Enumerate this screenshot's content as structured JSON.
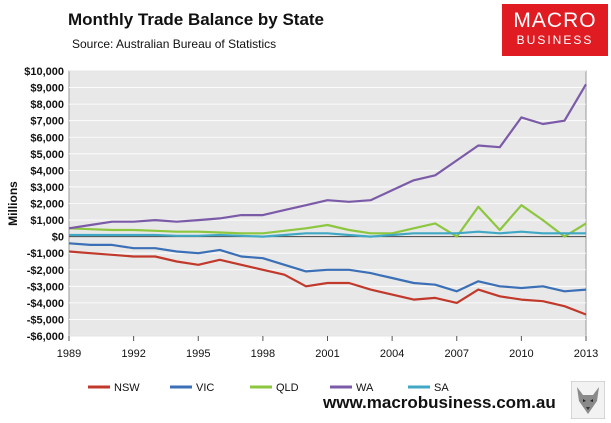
{
  "header": {
    "title": "Monthly Trade Balance by State",
    "subtitle": "Source: Australian Bureau of Statistics"
  },
  "logo": {
    "line1": "MACRO",
    "line2": "BUSINESS"
  },
  "footer": {
    "website": "www.macrobusiness.com.au"
  },
  "chart_data": {
    "type": "line",
    "ylabel": "Millions",
    "xlim": [
      1989,
      2013
    ],
    "ylim": [
      -6000,
      10000
    ],
    "yticks": [
      {
        "v": 10000,
        "label": "$10,000"
      },
      {
        "v": 9000,
        "label": "$9,000"
      },
      {
        "v": 8000,
        "label": "$8,000"
      },
      {
        "v": 7000,
        "label": "$7,000"
      },
      {
        "v": 6000,
        "label": "$6,000"
      },
      {
        "v": 5000,
        "label": "$5,000"
      },
      {
        "v": 4000,
        "label": "$4,000"
      },
      {
        "v": 3000,
        "label": "$3,000"
      },
      {
        "v": 2000,
        "label": "$2,000"
      },
      {
        "v": 1000,
        "label": "$1,000"
      },
      {
        "v": 0,
        "label": "$0"
      },
      {
        "v": -1000,
        "label": "-$1,000"
      },
      {
        "v": -2000,
        "label": "-$2,000"
      },
      {
        "v": -3000,
        "label": "-$3,000"
      },
      {
        "v": -4000,
        "label": "-$4,000"
      },
      {
        "v": -5000,
        "label": "-$5,000"
      },
      {
        "v": -6000,
        "label": "-$6,000"
      }
    ],
    "xticks": [
      {
        "v": 1989,
        "label": "1989"
      },
      {
        "v": 1992,
        "label": "1992"
      },
      {
        "v": 1995,
        "label": "1995"
      },
      {
        "v": 1998,
        "label": "1998"
      },
      {
        "v": 2001,
        "label": "2001"
      },
      {
        "v": 2004,
        "label": "2004"
      },
      {
        "v": 2007,
        "label": "2007"
      },
      {
        "v": 2010,
        "label": "2010"
      },
      {
        "v": 2013,
        "label": "2013"
      }
    ],
    "series": [
      {
        "name": "NSW",
        "color": "#c0392b",
        "x": [
          1989,
          1990,
          1991,
          1992,
          1993,
          1994,
          1995,
          1996,
          1997,
          1998,
          1999,
          2000,
          2001,
          2002,
          2003,
          2004,
          2005,
          2006,
          2007,
          2008,
          2009,
          2010,
          2011,
          2012,
          2013
        ],
        "y": [
          -900,
          -1000,
          -1100,
          -1200,
          -1200,
          -1500,
          -1700,
          -1400,
          -1700,
          -2000,
          -2300,
          -3000,
          -2800,
          -2800,
          -3200,
          -3500,
          -3800,
          -3700,
          -4000,
          -3200,
          -3600,
          -3800,
          -3900,
          -4200,
          -4700
        ]
      },
      {
        "name": "VIC",
        "color": "#3b6fb6",
        "x": [
          1989,
          1990,
          1991,
          1992,
          1993,
          1994,
          1995,
          1996,
          1997,
          1998,
          1999,
          2000,
          2001,
          2002,
          2003,
          2004,
          2005,
          2006,
          2007,
          2008,
          2009,
          2010,
          2011,
          2012,
          2013
        ],
        "y": [
          -400,
          -500,
          -500,
          -700,
          -700,
          -900,
          -1000,
          -800,
          -1200,
          -1300,
          -1700,
          -2100,
          -2000,
          -2000,
          -2200,
          -2500,
          -2800,
          -2900,
          -3300,
          -2700,
          -3000,
          -3100,
          -3000,
          -3300,
          -3200
        ]
      },
      {
        "name": "QLD",
        "color": "#8dc63f",
        "x": [
          1989,
          1990,
          1991,
          1992,
          1993,
          1994,
          1995,
          1996,
          1997,
          1998,
          1999,
          2000,
          2001,
          2002,
          2003,
          2004,
          2005,
          2006,
          2007,
          2008,
          2009,
          2010,
          2011,
          2012,
          2013
        ],
        "y": [
          500,
          450,
          400,
          400,
          350,
          300,
          300,
          250,
          200,
          200,
          350,
          500,
          700,
          400,
          200,
          200,
          500,
          800,
          0,
          1800,
          400,
          1900,
          1000,
          0,
          800
        ]
      },
      {
        "name": "WA",
        "color": "#7b5ba8",
        "x": [
          1989,
          1990,
          1991,
          1992,
          1993,
          1994,
          1995,
          1996,
          1997,
          1998,
          1999,
          2000,
          2001,
          2002,
          2003,
          2004,
          2005,
          2006,
          2007,
          2008,
          2009,
          2010,
          2011,
          2012,
          2013
        ],
        "y": [
          500,
          700,
          900,
          900,
          1000,
          900,
          1000,
          1100,
          1300,
          1300,
          1600,
          1900,
          2200,
          2100,
          2200,
          2800,
          3400,
          3700,
          4600,
          5500,
          5400,
          7200,
          6800,
          7000,
          9200
        ]
      },
      {
        "name": "SA",
        "color": "#40a8c4",
        "x": [
          1989,
          1990,
          1991,
          1992,
          1993,
          1994,
          1995,
          1996,
          1997,
          1998,
          1999,
          2000,
          2001,
          2002,
          2003,
          2004,
          2005,
          2006,
          2007,
          2008,
          2009,
          2010,
          2011,
          2012,
          2013
        ],
        "y": [
          100,
          100,
          100,
          100,
          100,
          50,
          50,
          100,
          50,
          0,
          100,
          200,
          200,
          100,
          0,
          100,
          200,
          200,
          200,
          300,
          200,
          300,
          200,
          200,
          200
        ]
      }
    ]
  }
}
